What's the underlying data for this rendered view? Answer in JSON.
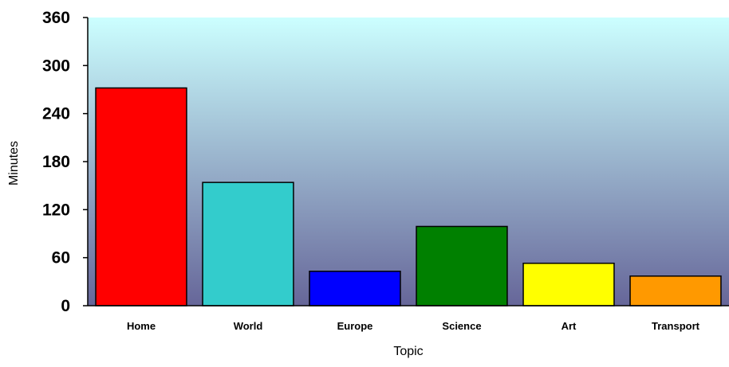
{
  "chart_data": {
    "type": "bar",
    "title": "",
    "xlabel": "Topic",
    "ylabel": "Minutes",
    "categories": [
      "Home",
      "World",
      "Europe",
      "Science",
      "Art",
      "Transport"
    ],
    "values": [
      272,
      154,
      43,
      99,
      53,
      37
    ],
    "colors": [
      "#ff0000",
      "#33cccc",
      "#0000ff",
      "#008000",
      "#ffff00",
      "#ff9900"
    ],
    "ylim": [
      0,
      360
    ],
    "yticks": [
      0,
      60,
      120,
      180,
      240,
      300,
      360
    ],
    "ytick_labels": [
      "0",
      "60",
      "120",
      "180",
      "240",
      "300",
      "360"
    ],
    "grid": false,
    "legend": "none",
    "background_gradient": [
      "#ccffff",
      "#666699"
    ]
  }
}
